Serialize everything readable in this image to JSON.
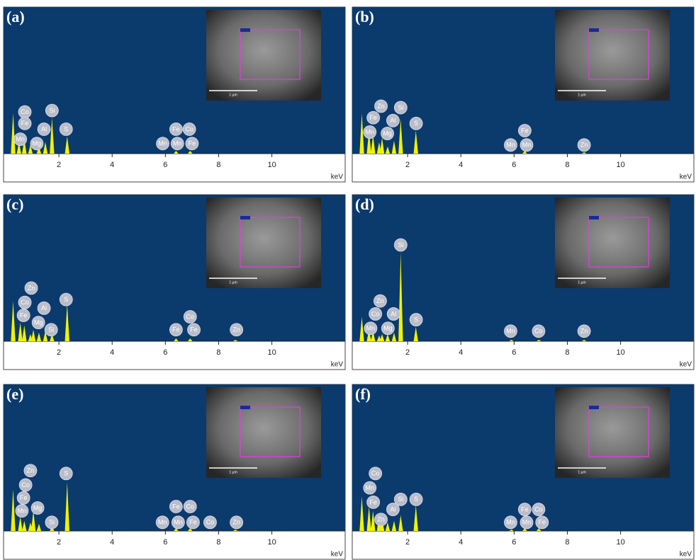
{
  "chart_data": [
    {
      "type": "area",
      "title": "(a)",
      "color": "#f2f200",
      "background": "#0b3a6d",
      "xlabel": "keV",
      "inset_scale": "1 µm",
      "xlim": [
        0,
        12.7
      ],
      "xticks": [
        2,
        4,
        6,
        8,
        10
      ],
      "ylim": [
        0,
        100
      ],
      "x": [
        0.28,
        0.5,
        0.7,
        0.93,
        1.25,
        1.49,
        1.74,
        2.31,
        6.4,
        6.93
      ],
      "values": [
        28,
        8,
        10,
        6,
        5,
        8,
        25,
        12,
        2,
        2
      ],
      "annotations": [
        {
          "text": "Co",
          "x": 0.72,
          "y": 29
        },
        {
          "text": "Fe",
          "x": 0.72,
          "y": 21
        },
        {
          "text": "Mn",
          "x": 0.55,
          "y": 10
        },
        {
          "text": "Mg",
          "x": 1.17,
          "y": 7
        },
        {
          "text": "Al",
          "x": 1.44,
          "y": 17
        },
        {
          "text": "Si",
          "x": 1.74,
          "y": 30
        },
        {
          "text": "S",
          "x": 2.27,
          "y": 17
        },
        {
          "text": "Fe",
          "x": 6.4,
          "y": 17
        },
        {
          "text": "Co",
          "x": 6.9,
          "y": 17
        },
        {
          "text": "Mn",
          "x": 5.9,
          "y": 7
        },
        {
          "text": "Mn",
          "x": 6.45,
          "y": 7
        },
        {
          "text": "Fe",
          "x": 7.0,
          "y": 7
        }
      ]
    },
    {
      "type": "area",
      "title": "(b)",
      "color": "#f2f200",
      "background": "#0b3a6d",
      "xlabel": "keV",
      "inset_scale": "1 µm",
      "xlim": [
        0,
        12.7
      ],
      "xticks": [
        2,
        4,
        6,
        8,
        10
      ],
      "ylim": [
        0,
        100
      ],
      "x": [
        0.28,
        0.55,
        0.7,
        0.93,
        1.04,
        1.25,
        1.49,
        1.74,
        2.31,
        6.4,
        8.63
      ],
      "values": [
        28,
        16,
        13,
        8,
        11,
        5,
        9,
        24,
        16,
        2,
        1
      ],
      "annotations": [
        {
          "text": "Zn",
          "x": 1.0,
          "y": 33
        },
        {
          "text": "Si",
          "x": 1.74,
          "y": 32
        },
        {
          "text": "Fe",
          "x": 0.71,
          "y": 25
        },
        {
          "text": "Al",
          "x": 1.45,
          "y": 23
        },
        {
          "text": "Mn",
          "x": 0.58,
          "y": 15
        },
        {
          "text": "Mg",
          "x": 1.24,
          "y": 14
        },
        {
          "text": "S",
          "x": 2.32,
          "y": 21
        },
        {
          "text": "Fe",
          "x": 6.4,
          "y": 16
        },
        {
          "text": "Mn",
          "x": 5.87,
          "y": 6
        },
        {
          "text": "Mn",
          "x": 6.47,
          "y": 6
        },
        {
          "text": "Zn",
          "x": 8.63,
          "y": 6
        }
      ]
    },
    {
      "type": "area",
      "title": "(c)",
      "color": "#f2f200",
      "background": "#0b3a6d",
      "xlabel": "keV",
      "inset_scale": "1 µm",
      "xlim": [
        0,
        12.7
      ],
      "xticks": [
        2,
        4,
        6,
        8,
        10
      ],
      "ylim": [
        0,
        100
      ],
      "x": [
        0.28,
        0.55,
        0.7,
        0.93,
        1.04,
        1.25,
        1.49,
        1.74,
        2.31,
        6.4,
        6.93,
        8.63
      ],
      "values": [
        28,
        13,
        11,
        5,
        8,
        6,
        7,
        5,
        26,
        2,
        2,
        1
      ],
      "annotations": [
        {
          "text": "Zn",
          "x": 0.96,
          "y": 37
        },
        {
          "text": "Co",
          "x": 0.72,
          "y": 27
        },
        {
          "text": "Al",
          "x": 1.44,
          "y": 23
        },
        {
          "text": "Fe",
          "x": 0.67,
          "y": 18
        },
        {
          "text": "Mg",
          "x": 1.23,
          "y": 13
        },
        {
          "text": "Si",
          "x": 1.71,
          "y": 8
        },
        {
          "text": "S",
          "x": 2.27,
          "y": 29
        },
        {
          "text": "Co",
          "x": 6.93,
          "y": 17
        },
        {
          "text": "Fe",
          "x": 6.4,
          "y": 8
        },
        {
          "text": "Fe",
          "x": 7.07,
          "y": 8
        },
        {
          "text": "Zn",
          "x": 8.67,
          "y": 8
        }
      ]
    },
    {
      "type": "area",
      "title": "(d)",
      "color": "#f2f200",
      "background": "#0b3a6d",
      "xlabel": "keV",
      "inset_scale": "1 µm",
      "xlim": [
        0,
        12.7
      ],
      "xticks": [
        2,
        4,
        6,
        8,
        10
      ],
      "ylim": [
        0,
        100
      ],
      "x": [
        0.28,
        0.55,
        0.7,
        0.93,
        1.04,
        1.25,
        1.49,
        1.74,
        2.31,
        5.9,
        6.93,
        8.63
      ],
      "values": [
        17,
        8,
        7,
        4,
        5,
        5,
        6,
        62,
        10,
        1,
        1,
        1
      ],
      "annotations": [
        {
          "text": "Si",
          "x": 1.74,
          "y": 67
        },
        {
          "text": "Zn",
          "x": 0.97,
          "y": 28
        },
        {
          "text": "Co",
          "x": 0.79,
          "y": 19
        },
        {
          "text": "Al",
          "x": 1.47,
          "y": 19
        },
        {
          "text": "Mn",
          "x": 0.61,
          "y": 9
        },
        {
          "text": "Mg",
          "x": 1.26,
          "y": 9
        },
        {
          "text": "S",
          "x": 2.32,
          "y": 15
        },
        {
          "text": "Mn",
          "x": 5.87,
          "y": 7
        },
        {
          "text": "Co",
          "x": 6.92,
          "y": 7
        },
        {
          "text": "Zn",
          "x": 8.63,
          "y": 7
        }
      ]
    },
    {
      "type": "area",
      "title": "(e)",
      "color": "#f2f200",
      "background": "#0b3a6d",
      "xlabel": "keV",
      "inset_scale": "1 µm",
      "xlim": [
        0,
        12.7
      ],
      "xticks": [
        2,
        4,
        6,
        8,
        10
      ],
      "ylim": [
        0,
        100
      ],
      "x": [
        0.28,
        0.55,
        0.7,
        0.93,
        1.04,
        1.25,
        1.74,
        2.31,
        6.4,
        6.93,
        8.63
      ],
      "values": [
        29,
        10,
        7,
        6,
        14,
        5,
        3,
        34,
        2,
        2,
        1
      ],
      "annotations": [
        {
          "text": "Zn",
          "x": 0.93,
          "y": 42
        },
        {
          "text": "Co",
          "x": 0.75,
          "y": 32
        },
        {
          "text": "Fe",
          "x": 0.67,
          "y": 23
        },
        {
          "text": "Mn",
          "x": 0.61,
          "y": 14
        },
        {
          "text": "Mg",
          "x": 1.2,
          "y": 16
        },
        {
          "text": "Si",
          "x": 1.73,
          "y": 6
        },
        {
          "text": "S",
          "x": 2.27,
          "y": 40
        },
        {
          "text": "Fe",
          "x": 6.4,
          "y": 17
        },
        {
          "text": "Co",
          "x": 6.93,
          "y": 17
        },
        {
          "text": "Mn",
          "x": 5.89,
          "y": 6
        },
        {
          "text": "Mn",
          "x": 6.48,
          "y": 6
        },
        {
          "text": "Fe",
          "x": 7.04,
          "y": 6
        },
        {
          "text": "Co",
          "x": 7.68,
          "y": 6
        },
        {
          "text": "Zn",
          "x": 8.67,
          "y": 6
        }
      ]
    },
    {
      "type": "area",
      "title": "(f)",
      "color": "#f2f200",
      "background": "#0b3a6d",
      "xlabel": "keV",
      "inset_scale": "1 µm",
      "xlim": [
        0,
        12.7
      ],
      "xticks": [
        2,
        4,
        6,
        8,
        10
      ],
      "ylim": [
        0,
        100
      ],
      "x": [
        0.28,
        0.55,
        0.7,
        0.93,
        1.04,
        1.25,
        1.49,
        1.74,
        2.31,
        5.9,
        6.4,
        6.93
      ],
      "values": [
        24,
        17,
        14,
        12,
        8,
        6,
        7,
        11,
        18,
        1,
        2,
        2
      ],
      "annotations": [
        {
          "text": "Co",
          "x": 0.79,
          "y": 40
        },
        {
          "text": "Mn",
          "x": 0.58,
          "y": 30
        },
        {
          "text": "Fe",
          "x": 0.71,
          "y": 20
        },
        {
          "text": "Zn",
          "x": 1.0,
          "y": 8
        },
        {
          "text": "Al",
          "x": 1.45,
          "y": 15
        },
        {
          "text": "Si",
          "x": 1.74,
          "y": 22
        },
        {
          "text": "S",
          "x": 2.32,
          "y": 22
        },
        {
          "text": "Fe",
          "x": 6.4,
          "y": 15
        },
        {
          "text": "Co",
          "x": 6.92,
          "y": 15
        },
        {
          "text": "Mn",
          "x": 5.87,
          "y": 6
        },
        {
          "text": "Mn",
          "x": 6.47,
          "y": 6
        },
        {
          "text": "Fe",
          "x": 7.05,
          "y": 6
        }
      ]
    }
  ]
}
